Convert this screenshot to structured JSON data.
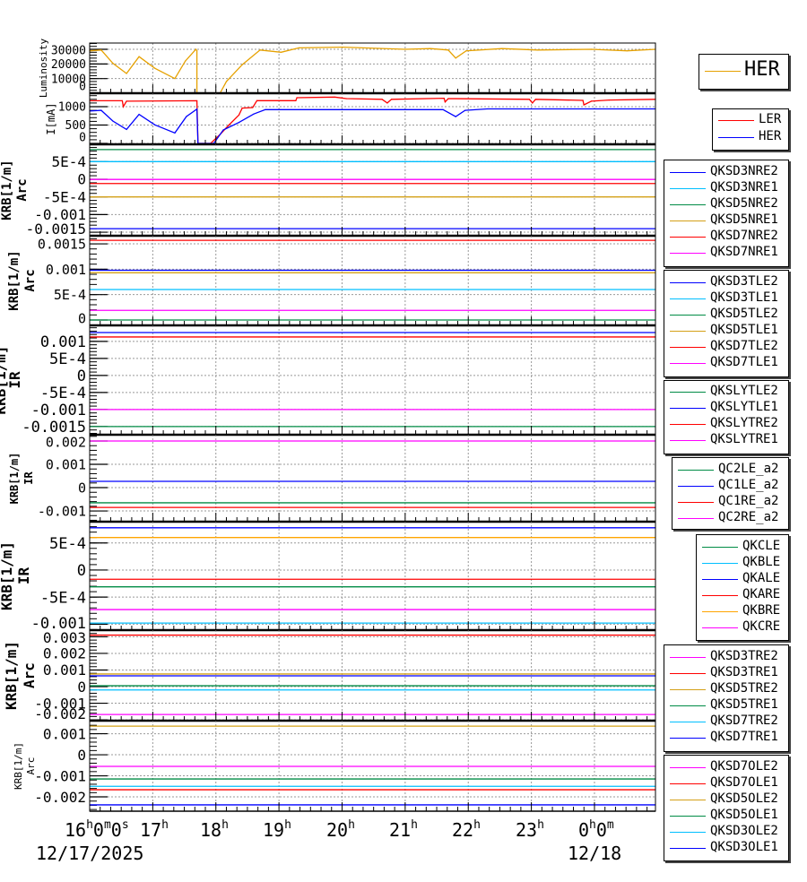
{
  "chart_data": [
    {
      "type": "line",
      "ylabel": [
        "Luminosity"
      ],
      "ylim": [
        0,
        34300
      ],
      "yticks": [
        {
          "v": 0,
          "label": "0"
        },
        {
          "v": 10000,
          "label": "10000"
        },
        {
          "v": 20000,
          "label": "20000"
        },
        {
          "v": 30000,
          "label": "30000"
        }
      ],
      "series": [
        {
          "name": "HER",
          "color": "#e6a100",
          "x": [
            "16:00",
            "16:11",
            "16:22",
            "16:35",
            "16:47",
            "17:02",
            "17:21",
            "17:31",
            "17:41",
            "17:42",
            "17:42",
            "18:04",
            "18:10",
            "18:25",
            "18:42",
            "19:02",
            "19:19",
            "20:01",
            "21:00",
            "21:24",
            "21:41",
            "21:48",
            "21:58",
            "22:32",
            "23:06",
            "23:57",
            "00:31",
            "00:58"
          ],
          "y": [
            29000,
            29500,
            20500,
            13500,
            25000,
            17000,
            10000,
            22000,
            30000,
            29000,
            0,
            0,
            8000,
            19500,
            29500,
            28000,
            31000,
            31500,
            30000,
            30500,
            29500,
            24000,
            29000,
            30500,
            29500,
            30000,
            29000,
            30000
          ]
        }
      ]
    },
    {
      "type": "line",
      "ylabel": [
        "I[mA]"
      ],
      "ylim": [
        -24,
        1366
      ],
      "yticks": [
        {
          "v": 0,
          "label": "0"
        },
        {
          "v": 500,
          "label": "500"
        },
        {
          "v": 1000,
          "label": "1000"
        }
      ],
      "series": [
        {
          "name": "LER",
          "color": "#ff0000",
          "x": [
            "16:00",
            "16:31",
            "16:32",
            "16:35",
            "17:42",
            "17:43",
            "17:55",
            "18:04",
            "18:12",
            "18:22",
            "18:25",
            "18:35",
            "18:39",
            "19:16",
            "19:17",
            "19:53",
            "20:04",
            "20:38",
            "20:43",
            "20:47",
            "21:37",
            "21:38",
            "21:41",
            "22:58",
            "23:01",
            "23:04",
            "23:49",
            "23:50",
            "23:57",
            "00:14",
            "00:58"
          ],
          "y": [
            1160,
            1160,
            1000,
            1150,
            1160,
            0,
            0,
            244,
            488,
            773,
            960,
            976,
            1163,
            1163,
            1244,
            1260,
            1220,
            1200,
            1100,
            1200,
            1230,
            1130,
            1220,
            1200,
            1100,
            1200,
            1170,
            1050,
            1150,
            1180,
            1200
          ]
        },
        {
          "name": "HER",
          "color": "#0000ff",
          "x": [
            "16:00",
            "16:11",
            "16:22",
            "16:35",
            "16:47",
            "17:02",
            "17:21",
            "17:32",
            "17:42",
            "17:43",
            "17:58",
            "18:07",
            "18:22",
            "18:36",
            "18:47",
            "21:36",
            "21:48",
            "21:57",
            "22:18",
            "00:58"
          ],
          "y": [
            880,
            900,
            610,
            380,
            790,
            505,
            285,
            732,
            935,
            0,
            0,
            366,
            570,
            800,
            920,
            920,
            730,
            900,
            940,
            940
          ]
        }
      ]
    },
    {
      "type": "line",
      "ylabel": [
        "KRB[1/m]",
        "Arc"
      ],
      "ylim": [
        -0.0016,
        0.00099
      ],
      "yticks": [
        {
          "v": 0.0005,
          "label": "5E-4"
        },
        {
          "v": 0,
          "label": "0"
        },
        {
          "v": -0.0005,
          "label": "-5E-4"
        },
        {
          "v": -0.001,
          "label": "-0.001"
        },
        {
          "v": -0.0015,
          "label": "-0.0015"
        }
      ],
      "series": [
        {
          "name": "QKSD3NRE2",
          "color": "#0000ff",
          "value": -0.0014
        },
        {
          "name": "QKSD3NRE1",
          "color": "#00bfff",
          "value": 0.0005
        },
        {
          "name": "QKSD5NRE2",
          "color": "#008b45",
          "value": 0.00084
        },
        {
          "name": "QKSD5NRE1",
          "color": "#d4a017",
          "value": -0.0005
        },
        {
          "name": "QKSD7NRE2",
          "color": "#ff0000",
          "value": -0.00012
        },
        {
          "name": "QKSD7NRE1",
          "color": "#ff00ff",
          "value": -5e-06
        }
      ]
    },
    {
      "type": "line",
      "ylabel": [
        "KRB[1/m]",
        "Arc"
      ],
      "ylim": [
        -0.000106,
        0.00166
      ],
      "yticks": [
        {
          "v": 0,
          "label": "0"
        },
        {
          "v": 0.0005,
          "label": "5E-4"
        },
        {
          "v": 0.001,
          "label": "0.001"
        },
        {
          "v": 0.0015,
          "label": "0.0015"
        }
      ],
      "series": [
        {
          "name": "QKSD3TLE2",
          "color": "#0000ff",
          "value": 0.00098
        },
        {
          "name": "QKSD3TLE1",
          "color": "#00bfff",
          "value": 0.0006
        },
        {
          "name": "QKSD5TLE2",
          "color": "#008b45",
          "value": 0
        },
        {
          "name": "QKSD5TLE1",
          "color": "#d4a017",
          "value": 0.00093
        },
        {
          "name": "QKSD7TLE2",
          "color": "#ff0000",
          "value": 0.00157
        },
        {
          "name": "QKSD7TLE1",
          "color": "#ff00ff",
          "value": 0.00019
        }
      ]
    },
    {
      "type": "line",
      "ylabel": [
        "KRB[1/m]",
        "IR"
      ],
      "ylim": [
        -0.00174,
        0.00147
      ],
      "yticks": [
        {
          "v": 0.001,
          "label": "0.001"
        },
        {
          "v": 0.0005,
          "label": "5E-4"
        },
        {
          "v": 0,
          "label": "0"
        },
        {
          "v": -0.0005,
          "label": "-5E-4"
        },
        {
          "v": -0.001,
          "label": "-0.001"
        },
        {
          "v": -0.0015,
          "label": "-0.0015"
        }
      ],
      "series": [
        {
          "name": "QKSLYTLE2",
          "color": "#008b45",
          "value": -0.0015
        },
        {
          "name": "QKSLYTLE1",
          "color": "#0000ff",
          "value": 0.00126
        },
        {
          "name": "QKSLYTRE2",
          "color": "#ff0000",
          "value": 0.00113
        },
        {
          "name": "QKSLYTRE1",
          "color": "#ff00ff",
          "value": -0.001
        }
      ]
    },
    {
      "type": "line",
      "ylabel": [
        "KRB[1/m]",
        "IR"
      ],
      "ylim": [
        -0.00146,
        0.00227
      ],
      "yticks": [
        {
          "v": 0.002,
          "label": "0.002"
        },
        {
          "v": 0.001,
          "label": "0.001"
        },
        {
          "v": 0,
          "label": "0"
        },
        {
          "v": -0.001,
          "label": "-0.001"
        }
      ],
      "series": [
        {
          "name": "QC2LE_a2",
          "color": "#008b45",
          "value": -0.00065
        },
        {
          "name": "QC1LE_a2",
          "color": "#0000ff",
          "value": 0.00027
        },
        {
          "name": "QC1RE_a2",
          "color": "#ff0000",
          "value": -0.00085
        },
        {
          "name": "QC2RE_a2",
          "color": "#ff00ff",
          "value": 0.002
        }
      ]
    },
    {
      "type": "line",
      "ylabel": [
        "KRB[1/m]",
        "IR"
      ],
      "ylim": [
        -0.00111,
        0.000893
      ],
      "yticks": [
        {
          "v": 0.0005,
          "label": "5E-4"
        },
        {
          "v": 0,
          "label": "0"
        },
        {
          "v": -0.0005,
          "label": "-5E-4"
        },
        {
          "v": -0.001,
          "label": "-0.001"
        }
      ],
      "series": [
        {
          "name": "QKCLE",
          "color": "#008b45",
          "value": -0.00031
        },
        {
          "name": "QKBLE",
          "color": "#00bfff",
          "value": -0.00098
        },
        {
          "name": "QKALE",
          "color": "#0000ff",
          "value": 0.00078
        },
        {
          "name": "QKARE",
          "color": "#ff0000",
          "value": -0.00017
        },
        {
          "name": "QKBRE",
          "color": "#ffa500",
          "value": 0.0006
        },
        {
          "name": "QKCRE",
          "color": "#ff00ff",
          "value": -0.00073
        }
      ]
    },
    {
      "type": "line",
      "ylabel": [
        "KRB[1/m]",
        "Arc"
      ],
      "ylim": [
        -0.00205,
        0.0034
      ],
      "yticks": [
        {
          "v": 0.003,
          "label": "0.003"
        },
        {
          "v": 0.002,
          "label": "0.002"
        },
        {
          "v": 0.001,
          "label": "0.001"
        },
        {
          "v": 0,
          "label": "0"
        },
        {
          "v": -0.001,
          "label": "-0.001"
        },
        {
          "v": -0.002,
          "label": "-0.002"
        }
      ],
      "series": [
        {
          "name": "QKSD3TRE2",
          "color": "#ff00ff",
          "value": -0.00168
        },
        {
          "name": "QKSD3TRE1",
          "color": "#ff0000",
          "value": 0.0031
        },
        {
          "name": "QKSD5TRE2",
          "color": "#d4a017",
          "value": 0.00076
        },
        {
          "name": "QKSD5TRE1",
          "color": "#008b45",
          "value": 5e-05
        },
        {
          "name": "QKSD7TRE2",
          "color": "#00bfff",
          "value": -0.0002
        },
        {
          "name": "QKSD7TRE1",
          "color": "#0000ff",
          "value": 0.00065
        }
      ]
    },
    {
      "type": "line",
      "ylabel": [
        "KRB[1/m]",
        "Arc"
      ],
      "ylim": [
        -0.00268,
        0.00162
      ],
      "yticks": [
        {
          "v": 0.001,
          "label": "0.001"
        },
        {
          "v": 0,
          "label": "0"
        },
        {
          "v": -0.001,
          "label": "-0.001"
        },
        {
          "v": -0.002,
          "label": "-0.002"
        }
      ],
      "series": [
        {
          "name": "QKSD7OLE2",
          "color": "#ff00ff",
          "value": -0.00055
        },
        {
          "name": "QKSD7OLE1",
          "color": "#ff0000",
          "value": -0.00166
        },
        {
          "name": "QKSD5OLE2",
          "color": "#d4a017",
          "value": 0.00136
        },
        {
          "name": "QKSD5OLE1",
          "color": "#008b45",
          "value": -0.00115
        },
        {
          "name": "QKSD3OLE2",
          "color": "#00bfff",
          "value": -0.0015
        },
        {
          "name": "QKSD3OLE1",
          "color": "#0000ff",
          "value": -0.00238
        }
      ]
    }
  ],
  "x_axis": {
    "xlim": [
      "16:00",
      "00:58"
    ],
    "ticks": [
      {
        "t": "16:00",
        "label": "16h0m0s"
      },
      {
        "t": "17:00",
        "label": "17h"
      },
      {
        "t": "18:00",
        "label": "18h"
      },
      {
        "t": "19:00",
        "label": "19h"
      },
      {
        "t": "20:00",
        "label": "20h"
      },
      {
        "t": "21:00",
        "label": "21h"
      },
      {
        "t": "22:00",
        "label": "22h"
      },
      {
        "t": "23:00",
        "label": "23h"
      },
      {
        "t": "00:00",
        "label": "0h0m"
      }
    ],
    "dates": {
      "start": "12/17/2025",
      "next": "12/18"
    },
    "grid": true
  }
}
